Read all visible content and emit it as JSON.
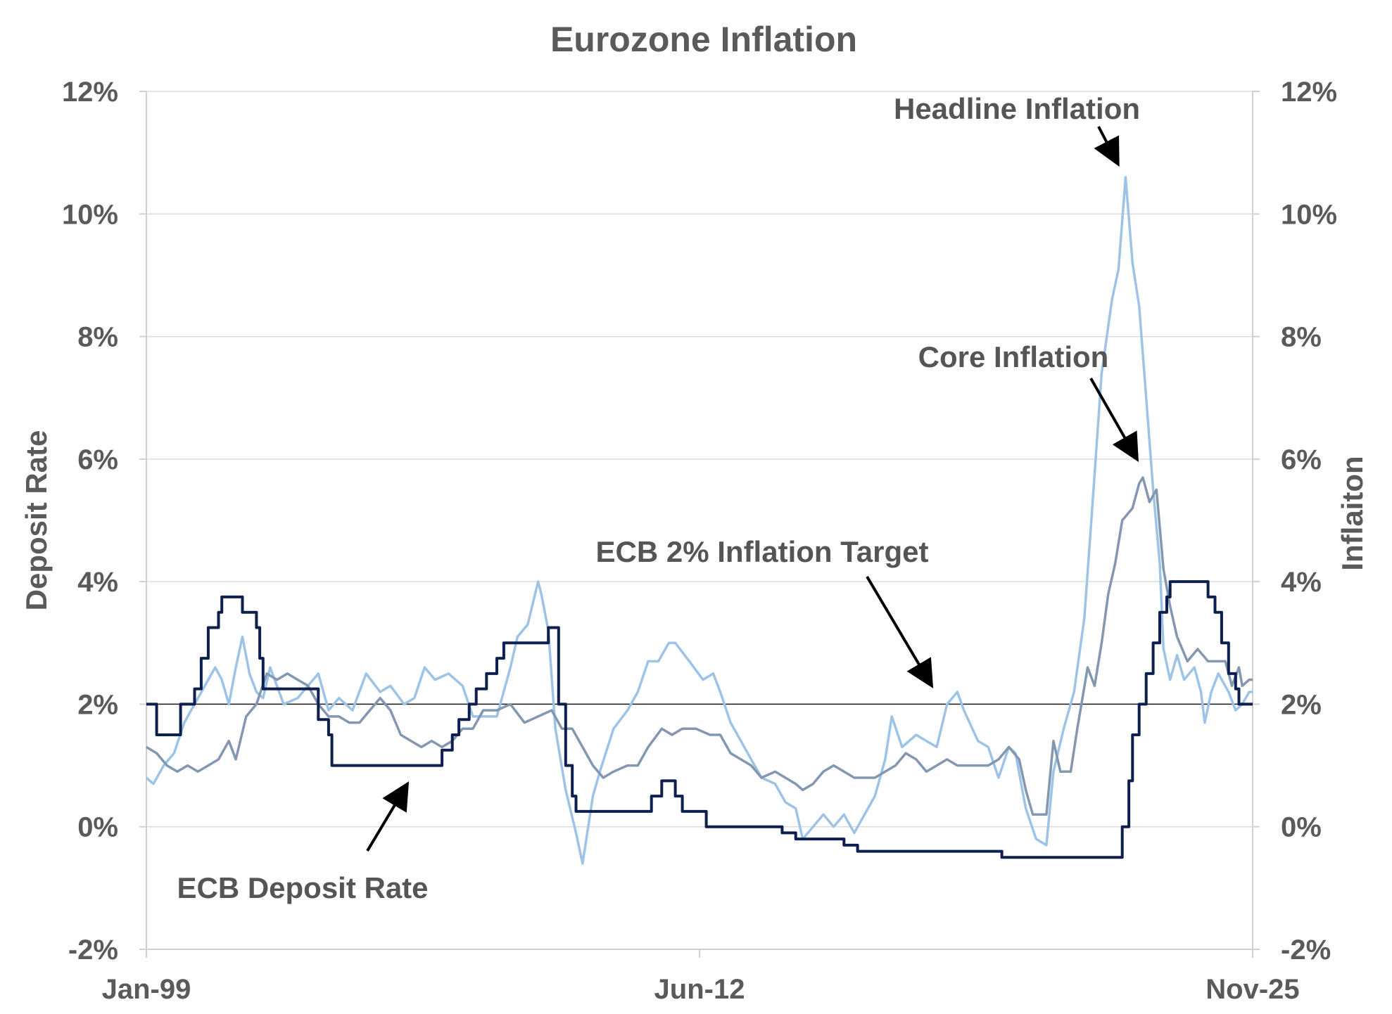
{
  "chart_data": {
    "type": "line",
    "title": "Eurozone Inflation",
    "ylabel_left": "Deposit  Rate",
    "ylabel_right": "Inflaiton",
    "ylim": [
      -2,
      12
    ],
    "yticks": [
      -2,
      0,
      2,
      4,
      6,
      8,
      10,
      12
    ],
    "ytick_labels": [
      "-2%",
      "0%",
      "2%",
      "4%",
      "6%",
      "8%",
      "10%",
      "12%"
    ],
    "x_range": [
      1999.0,
      2025.833
    ],
    "xticks": [
      {
        "label": "Jan-99",
        "x": 1999.0
      },
      {
        "label": "Jun-12",
        "x": 2012.417
      },
      {
        "label": "Nov-25",
        "x": 2025.833
      }
    ],
    "target_line": {
      "name": "ECB 2% Inflation Target",
      "value": 2.0,
      "color": "#1a1a1a"
    },
    "series": [
      {
        "name": "ECB Deposit Rate",
        "color": "#0d1f4f",
        "points": [
          [
            1999.0,
            2.0
          ],
          [
            1999.25,
            1.5
          ],
          [
            1999.83,
            2.0
          ],
          [
            2000.17,
            2.25
          ],
          [
            2000.33,
            2.75
          ],
          [
            2000.5,
            3.25
          ],
          [
            2000.75,
            3.5
          ],
          [
            2000.83,
            3.75
          ],
          [
            2001.33,
            3.5
          ],
          [
            2001.67,
            3.25
          ],
          [
            2001.75,
            2.75
          ],
          [
            2001.83,
            2.25
          ],
          [
            2002.92,
            2.25
          ],
          [
            2003.17,
            1.75
          ],
          [
            2003.42,
            1.5
          ],
          [
            2003.5,
            1.0
          ],
          [
            2005.92,
            1.0
          ],
          [
            2006.17,
            1.25
          ],
          [
            2006.42,
            1.5
          ],
          [
            2006.58,
            1.75
          ],
          [
            2006.83,
            2.0
          ],
          [
            2007.0,
            2.25
          ],
          [
            2007.25,
            2.5
          ],
          [
            2007.5,
            2.75
          ],
          [
            2007.67,
            3.0
          ],
          [
            2008.5,
            3.0
          ],
          [
            2008.75,
            3.25
          ],
          [
            2008.83,
            3.25
          ],
          [
            2009.0,
            2.0
          ],
          [
            2009.17,
            1.0
          ],
          [
            2009.33,
            0.5
          ],
          [
            2009.42,
            0.25
          ],
          [
            2011.25,
            0.5
          ],
          [
            2011.5,
            0.75
          ],
          [
            2011.83,
            0.5
          ],
          [
            2012.0,
            0.25
          ],
          [
            2012.5,
            0.25
          ],
          [
            2012.58,
            0.0
          ],
          [
            2014.42,
            -0.1
          ],
          [
            2014.75,
            -0.2
          ],
          [
            2015.92,
            -0.3
          ],
          [
            2016.25,
            -0.4
          ],
          [
            2019.75,
            -0.5
          ],
          [
            2022.58,
            -0.5
          ],
          [
            2022.67,
            0.0
          ],
          [
            2022.83,
            0.75
          ],
          [
            2022.92,
            1.5
          ],
          [
            2023.08,
            2.0
          ],
          [
            2023.25,
            2.5
          ],
          [
            2023.42,
            3.0
          ],
          [
            2023.58,
            3.5
          ],
          [
            2023.75,
            3.75
          ],
          [
            2023.83,
            4.0
          ],
          [
            2024.5,
            4.0
          ],
          [
            2024.75,
            3.75
          ],
          [
            2024.92,
            3.5
          ],
          [
            2025.08,
            3.0
          ],
          [
            2025.25,
            2.5
          ],
          [
            2025.42,
            2.25
          ],
          [
            2025.5,
            2.0
          ],
          [
            2025.833,
            2.0
          ]
        ]
      },
      {
        "name": "Headline Inflation",
        "color": "#9dc3e6",
        "points": [
          [
            1999.0,
            0.8
          ],
          [
            1999.17,
            0.7
          ],
          [
            1999.42,
            1.0
          ],
          [
            1999.67,
            1.2
          ],
          [
            1999.92,
            1.7
          ],
          [
            2000.17,
            2.0
          ],
          [
            2000.5,
            2.4
          ],
          [
            2000.67,
            2.6
          ],
          [
            2000.83,
            2.4
          ],
          [
            2001.0,
            2.0
          ],
          [
            2001.17,
            2.6
          ],
          [
            2001.33,
            3.1
          ],
          [
            2001.5,
            2.5
          ],
          [
            2001.67,
            2.2
          ],
          [
            2001.83,
            2.1
          ],
          [
            2002.0,
            2.6
          ],
          [
            2002.33,
            2.0
          ],
          [
            2002.67,
            2.1
          ],
          [
            2002.92,
            2.3
          ],
          [
            2003.17,
            2.5
          ],
          [
            2003.42,
            1.9
          ],
          [
            2003.67,
            2.1
          ],
          [
            2004.0,
            1.9
          ],
          [
            2004.33,
            2.5
          ],
          [
            2004.67,
            2.2
          ],
          [
            2004.92,
            2.3
          ],
          [
            2005.25,
            2.0
          ],
          [
            2005.5,
            2.1
          ],
          [
            2005.75,
            2.6
          ],
          [
            2006.0,
            2.4
          ],
          [
            2006.33,
            2.5
          ],
          [
            2006.67,
            2.3
          ],
          [
            2006.92,
            1.8
          ],
          [
            2007.17,
            1.8
          ],
          [
            2007.5,
            1.8
          ],
          [
            2007.83,
            2.6
          ],
          [
            2008.0,
            3.1
          ],
          [
            2008.25,
            3.3
          ],
          [
            2008.5,
            4.0
          ],
          [
            2008.58,
            3.8
          ],
          [
            2008.75,
            3.2
          ],
          [
            2008.92,
            1.6
          ],
          [
            2009.17,
            0.6
          ],
          [
            2009.42,
            -0.1
          ],
          [
            2009.58,
            -0.6
          ],
          [
            2009.83,
            0.5
          ],
          [
            2010.0,
            0.9
          ],
          [
            2010.33,
            1.6
          ],
          [
            2010.67,
            1.9
          ],
          [
            2010.92,
            2.2
          ],
          [
            2011.17,
            2.7
          ],
          [
            2011.42,
            2.7
          ],
          [
            2011.67,
            3.0
          ],
          [
            2011.83,
            3.0
          ],
          [
            2012.17,
            2.7
          ],
          [
            2012.5,
            2.4
          ],
          [
            2012.75,
            2.5
          ],
          [
            2012.92,
            2.2
          ],
          [
            2013.17,
            1.7
          ],
          [
            2013.42,
            1.4
          ],
          [
            2013.67,
            1.1
          ],
          [
            2013.92,
            0.8
          ],
          [
            2014.25,
            0.7
          ],
          [
            2014.5,
            0.4
          ],
          [
            2014.75,
            0.3
          ],
          [
            2014.92,
            -0.2
          ],
          [
            2015.17,
            0.0
          ],
          [
            2015.42,
            0.2
          ],
          [
            2015.67,
            0.0
          ],
          [
            2015.92,
            0.2
          ],
          [
            2016.17,
            -0.1
          ],
          [
            2016.42,
            0.2
          ],
          [
            2016.67,
            0.5
          ],
          [
            2016.92,
            1.1
          ],
          [
            2017.08,
            1.8
          ],
          [
            2017.33,
            1.3
          ],
          [
            2017.67,
            1.5
          ],
          [
            2017.92,
            1.4
          ],
          [
            2018.17,
            1.3
          ],
          [
            2018.42,
            2.0
          ],
          [
            2018.67,
            2.2
          ],
          [
            2018.83,
            1.9
          ],
          [
            2019.17,
            1.4
          ],
          [
            2019.42,
            1.3
          ],
          [
            2019.67,
            0.8
          ],
          [
            2019.92,
            1.3
          ],
          [
            2020.08,
            1.2
          ],
          [
            2020.33,
            0.3
          ],
          [
            2020.58,
            -0.2
          ],
          [
            2020.83,
            -0.3
          ],
          [
            2021.0,
            0.9
          ],
          [
            2021.25,
            1.6
          ],
          [
            2021.5,
            2.2
          ],
          [
            2021.75,
            3.4
          ],
          [
            2021.92,
            5.0
          ],
          [
            2022.17,
            7.4
          ],
          [
            2022.42,
            8.6
          ],
          [
            2022.58,
            9.1
          ],
          [
            2022.75,
            10.6
          ],
          [
            2022.92,
            9.2
          ],
          [
            2023.08,
            8.5
          ],
          [
            2023.25,
            7.0
          ],
          [
            2023.42,
            5.5
          ],
          [
            2023.58,
            4.3
          ],
          [
            2023.67,
            2.9
          ],
          [
            2023.83,
            2.4
          ],
          [
            2024.0,
            2.8
          ],
          [
            2024.17,
            2.4
          ],
          [
            2024.42,
            2.6
          ],
          [
            2024.58,
            2.2
          ],
          [
            2024.67,
            1.7
          ],
          [
            2024.83,
            2.2
          ],
          [
            2025.0,
            2.5
          ],
          [
            2025.25,
            2.2
          ],
          [
            2025.42,
            1.9
          ],
          [
            2025.58,
            2.0
          ],
          [
            2025.75,
            2.2
          ],
          [
            2025.833,
            2.2
          ]
        ]
      },
      {
        "name": "Core Inflation",
        "color": "#8497b0",
        "points": [
          [
            1999.0,
            1.3
          ],
          [
            1999.25,
            1.2
          ],
          [
            1999.5,
            1.0
          ],
          [
            1999.75,
            0.9
          ],
          [
            2000.0,
            1.0
          ],
          [
            2000.25,
            0.9
          ],
          [
            2000.5,
            1.0
          ],
          [
            2000.75,
            1.1
          ],
          [
            2001.0,
            1.4
          ],
          [
            2001.17,
            1.1
          ],
          [
            2001.42,
            1.8
          ],
          [
            2001.67,
            2.0
          ],
          [
            2001.92,
            2.5
          ],
          [
            2002.17,
            2.4
          ],
          [
            2002.42,
            2.5
          ],
          [
            2002.67,
            2.4
          ],
          [
            2002.92,
            2.3
          ],
          [
            2003.17,
            2.0
          ],
          [
            2003.42,
            1.8
          ],
          [
            2003.67,
            1.8
          ],
          [
            2003.92,
            1.7
          ],
          [
            2004.17,
            1.7
          ],
          [
            2004.42,
            1.9
          ],
          [
            2004.67,
            2.1
          ],
          [
            2004.92,
            1.9
          ],
          [
            2005.17,
            1.5
          ],
          [
            2005.42,
            1.4
          ],
          [
            2005.67,
            1.3
          ],
          [
            2005.92,
            1.4
          ],
          [
            2006.17,
            1.3
          ],
          [
            2006.42,
            1.4
          ],
          [
            2006.67,
            1.6
          ],
          [
            2006.92,
            1.6
          ],
          [
            2007.17,
            1.9
          ],
          [
            2007.5,
            1.9
          ],
          [
            2007.83,
            2.0
          ],
          [
            2008.17,
            1.7
          ],
          [
            2008.5,
            1.8
          ],
          [
            2008.83,
            1.9
          ],
          [
            2009.08,
            1.6
          ],
          [
            2009.33,
            1.6
          ],
          [
            2009.58,
            1.3
          ],
          [
            2009.83,
            1.0
          ],
          [
            2010.08,
            0.8
          ],
          [
            2010.33,
            0.9
          ],
          [
            2010.67,
            1.0
          ],
          [
            2010.92,
            1.0
          ],
          [
            2011.17,
            1.3
          ],
          [
            2011.5,
            1.6
          ],
          [
            2011.75,
            1.5
          ],
          [
            2012.0,
            1.6
          ],
          [
            2012.33,
            1.6
          ],
          [
            2012.67,
            1.5
          ],
          [
            2012.92,
            1.5
          ],
          [
            2013.17,
            1.2
          ],
          [
            2013.42,
            1.1
          ],
          [
            2013.67,
            1.0
          ],
          [
            2013.92,
            0.8
          ],
          [
            2014.25,
            0.9
          ],
          [
            2014.5,
            0.8
          ],
          [
            2014.75,
            0.7
          ],
          [
            2014.92,
            0.6
          ],
          [
            2015.17,
            0.7
          ],
          [
            2015.42,
            0.9
          ],
          [
            2015.67,
            1.0
          ],
          [
            2015.92,
            0.9
          ],
          [
            2016.17,
            0.8
          ],
          [
            2016.42,
            0.8
          ],
          [
            2016.67,
            0.8
          ],
          [
            2016.92,
            0.9
          ],
          [
            2017.17,
            1.0
          ],
          [
            2017.42,
            1.2
          ],
          [
            2017.67,
            1.1
          ],
          [
            2017.92,
            0.9
          ],
          [
            2018.17,
            1.0
          ],
          [
            2018.42,
            1.1
          ],
          [
            2018.67,
            1.0
          ],
          [
            2018.92,
            1.0
          ],
          [
            2019.17,
            1.0
          ],
          [
            2019.42,
            1.0
          ],
          [
            2019.67,
            1.1
          ],
          [
            2019.92,
            1.3
          ],
          [
            2020.17,
            1.1
          ],
          [
            2020.33,
            0.6
          ],
          [
            2020.5,
            0.2
          ],
          [
            2020.83,
            0.2
          ],
          [
            2021.0,
            1.4
          ],
          [
            2021.17,
            0.9
          ],
          [
            2021.42,
            0.9
          ],
          [
            2021.58,
            1.6
          ],
          [
            2021.83,
            2.6
          ],
          [
            2022.0,
            2.3
          ],
          [
            2022.17,
            3.0
          ],
          [
            2022.33,
            3.8
          ],
          [
            2022.5,
            4.3
          ],
          [
            2022.67,
            5.0
          ],
          [
            2022.92,
            5.2
          ],
          [
            2023.08,
            5.6
          ],
          [
            2023.17,
            5.7
          ],
          [
            2023.33,
            5.3
          ],
          [
            2023.5,
            5.5
          ],
          [
            2023.67,
            4.2
          ],
          [
            2023.83,
            3.6
          ],
          [
            2024.0,
            3.1
          ],
          [
            2024.25,
            2.7
          ],
          [
            2024.5,
            2.9
          ],
          [
            2024.75,
            2.7
          ],
          [
            2025.0,
            2.7
          ],
          [
            2025.17,
            2.7
          ],
          [
            2025.33,
            2.3
          ],
          [
            2025.5,
            2.6
          ],
          [
            2025.58,
            2.3
          ],
          [
            2025.75,
            2.4
          ],
          [
            2025.833,
            2.4
          ]
        ]
      }
    ],
    "annotations": [
      {
        "text": "Headline Inflation"
      },
      {
        "text": "Core Inflation"
      },
      {
        "text": "ECB 2% Inflation Target"
      },
      {
        "text": "ECB Deposit Rate"
      }
    ]
  }
}
